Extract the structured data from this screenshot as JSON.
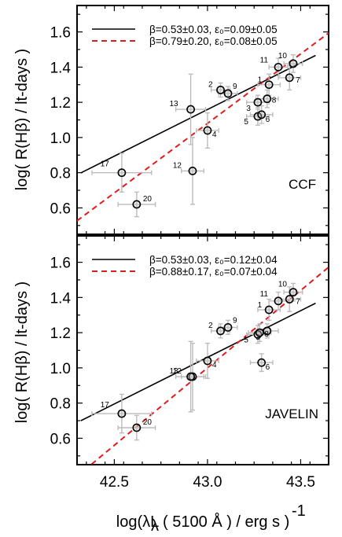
{
  "chart_data": [
    {
      "type": "scatter",
      "method_label": "CCF",
      "ylim": [
        0.45,
        1.75
      ],
      "xlim": [
        42.3,
        43.65
      ],
      "yticks": [
        "0.6",
        "0.8",
        "1.0",
        "1.2",
        "1.4",
        "1.6"
      ],
      "legend": [
        {
          "style": "solid",
          "color": "#000000",
          "beta": "β=0.53±0.03",
          "eps": "ε₀=0.09±0.05",
          "slope": 0.53,
          "intercept": 1.159,
          "x0": 43.0
        },
        {
          "style": "dashed",
          "color": "#e41a1c",
          "beta": "β=0.79±0.20",
          "eps": "ε₀=0.08±0.05",
          "slope": 0.79,
          "intercept": 1.08,
          "x0": 43.0
        }
      ],
      "points": [
        {
          "label": "1",
          "x": 43.33,
          "y": 1.3,
          "xerr": 0.06,
          "yerr": 0.06
        },
        {
          "label": "2",
          "x": 43.07,
          "y": 1.27,
          "xerr": 0.05,
          "yerr": 0.04
        },
        {
          "label": "3",
          "x": 43.27,
          "y": 1.2,
          "xerr": 0.06,
          "yerr": 0.04
        },
        {
          "label": "4",
          "x": 43.0,
          "y": 1.04,
          "xerr": 0.06,
          "yerr": 0.1
        },
        {
          "label": "5",
          "x": 43.27,
          "y": 1.12,
          "xerr": 0.06,
          "yerr": 0.05
        },
        {
          "label": "6",
          "x": 43.29,
          "y": 1.13,
          "xerr": 0.06,
          "yerr": 0.05
        },
        {
          "label": "7",
          "x": 43.44,
          "y": 1.34,
          "xerr": 0.06,
          "yerr": 0.07
        },
        {
          "label": "8",
          "x": 43.32,
          "y": 1.22,
          "xerr": 0.06,
          "yerr": 0.05
        },
        {
          "label": "9",
          "x": 43.11,
          "y": 1.25,
          "xerr": 0.05,
          "yerr": 0.04
        },
        {
          "label": "10",
          "x": 43.46,
          "y": 1.42,
          "xerr": 0.05,
          "yerr": 0.05
        },
        {
          "label": "11",
          "x": 43.38,
          "y": 1.4,
          "xerr": 0.05,
          "yerr": 0.05
        },
        {
          "label": "12",
          "x": 42.92,
          "y": 0.81,
          "xerr": 0.06,
          "yerr": 0.19
        },
        {
          "label": "13",
          "x": 42.91,
          "y": 1.16,
          "xerr": 0.08,
          "yerr": 0.2
        },
        {
          "label": "17",
          "x": 42.54,
          "y": 0.8,
          "xerr": 0.16,
          "yerr": 0.11
        },
        {
          "label": "20",
          "x": 42.62,
          "y": 0.62,
          "xerr": 0.1,
          "yerr": 0.07
        }
      ]
    },
    {
      "type": "scatter",
      "method_label": "JAVELIN",
      "ylim": [
        0.45,
        1.75
      ],
      "xlim": [
        42.3,
        43.65
      ],
      "yticks": [
        "0.6",
        "0.8",
        "1.0",
        "1.2",
        "1.4",
        "1.6"
      ],
      "legend": [
        {
          "style": "solid",
          "color": "#000000",
          "beta": "β=0.53±0.03",
          "eps": "ε₀=0.12±0.04",
          "slope": 0.53,
          "intercept": 1.06,
          "x0": 43.0
        },
        {
          "style": "dashed",
          "color": "#e41a1c",
          "beta": "β=0.88±0.17",
          "eps": "ε₀=0.07±0.04",
          "slope": 0.88,
          "intercept": 1.0,
          "x0": 43.0
        }
      ],
      "points": [
        {
          "label": "1",
          "x": 43.33,
          "y": 1.33,
          "xerr": 0.06,
          "yerr": 0.06
        },
        {
          "label": "2",
          "x": 43.07,
          "y": 1.21,
          "xerr": 0.05,
          "yerr": 0.04
        },
        {
          "label": "3",
          "x": 43.32,
          "y": 1.21,
          "xerr": 0.06,
          "yerr": 0.04
        },
        {
          "label": "4",
          "x": 43.0,
          "y": 1.04,
          "xerr": 0.06,
          "yerr": 0.1
        },
        {
          "label": "5",
          "x": 43.27,
          "y": 1.19,
          "xerr": 0.06,
          "yerr": 0.05
        },
        {
          "label": "6",
          "x": 43.29,
          "y": 1.03,
          "xerr": 0.06,
          "yerr": 0.05
        },
        {
          "label": "7",
          "x": 43.44,
          "y": 1.39,
          "xerr": 0.06,
          "yerr": 0.07
        },
        {
          "label": "8",
          "x": 43.28,
          "y": 1.2,
          "xerr": 0.06,
          "yerr": 0.05
        },
        {
          "label": "9",
          "x": 43.11,
          "y": 1.23,
          "xerr": 0.05,
          "yerr": 0.04
        },
        {
          "label": "10",
          "x": 43.46,
          "y": 1.43,
          "xerr": 0.05,
          "yerr": 0.05
        },
        {
          "label": "11",
          "x": 43.38,
          "y": 1.38,
          "xerr": 0.05,
          "yerr": 0.05
        },
        {
          "label": "12",
          "x": 42.92,
          "y": 0.95,
          "xerr": 0.06,
          "yerr": 0.19
        },
        {
          "label": "13",
          "x": 42.91,
          "y": 0.95,
          "xerr": 0.08,
          "yerr": 0.2
        },
        {
          "label": "17",
          "x": 42.54,
          "y": 0.74,
          "xerr": 0.16,
          "yerr": 0.11
        },
        {
          "label": "20",
          "x": 42.62,
          "y": 0.66,
          "xerr": 0.1,
          "yerr": 0.07
        }
      ]
    }
  ],
  "x_axis": {
    "ticks": [
      "42.5",
      "43.0",
      "43.5"
    ],
    "tick_values": [
      42.5,
      43.0,
      43.5
    ],
    "label": "log(λL  ( 5100 Å ) / erg s  )"
  },
  "y_axis_label": "log( R(Hβ) / lt-days )"
}
